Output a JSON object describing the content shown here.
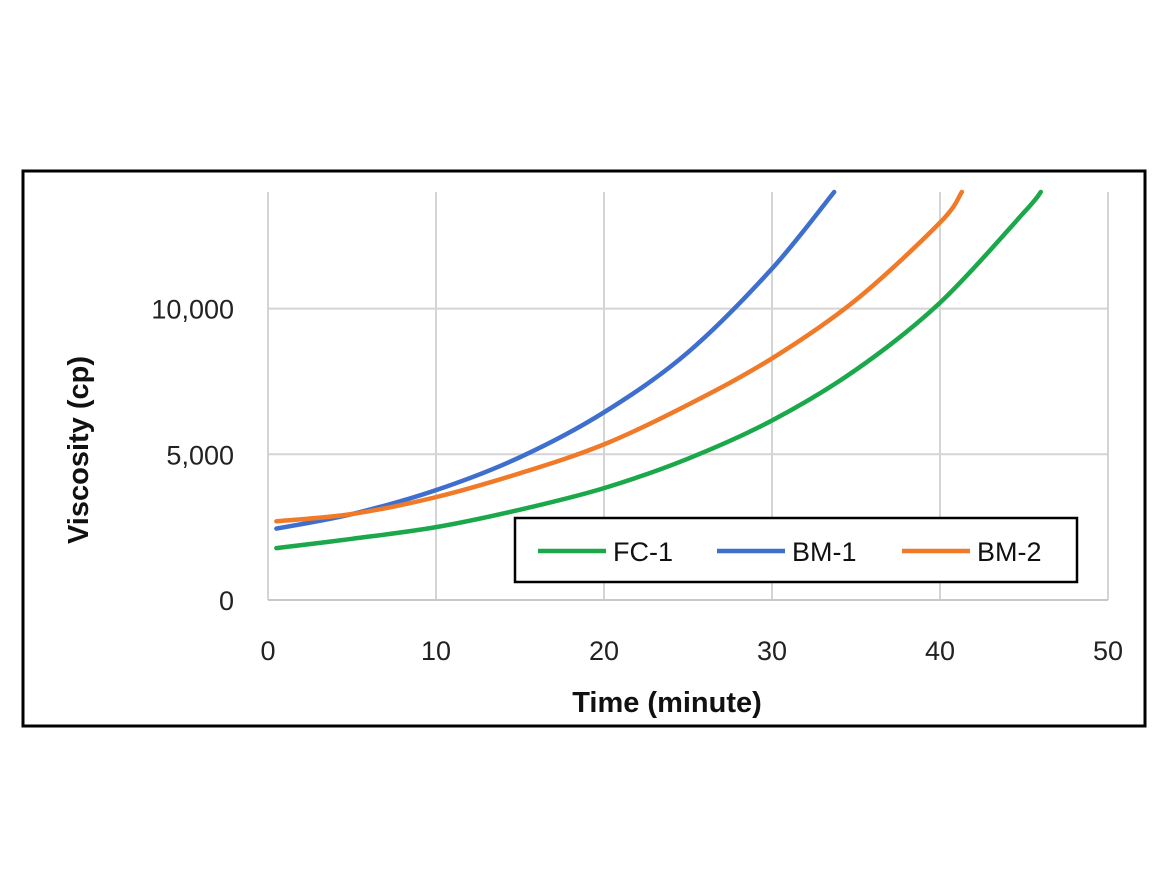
{
  "chart_data": {
    "type": "line",
    "title": "",
    "xlabel": "Time (minute)",
    "ylabel": "Viscosity (cp)",
    "xlim": [
      0,
      50
    ],
    "ylim": [
      0,
      14000
    ],
    "xticks": [
      0,
      10,
      20,
      30,
      40,
      50
    ],
    "xtick_labels": [
      "0",
      "10",
      "20",
      "30",
      "40",
      "50"
    ],
    "yticks": [
      0,
      5000,
      10000
    ],
    "ytick_labels": [
      "0",
      "5,000",
      "10,000"
    ],
    "grid": true,
    "legend_position": "bottom-right",
    "series": [
      {
        "name": "FC-1",
        "color": "#1aa84a",
        "x": [
          0.5,
          5,
          10,
          15,
          20,
          25,
          30,
          35,
          40,
          45,
          46
        ],
        "y": [
          1780,
          2100,
          2500,
          3100,
          3840,
          4850,
          6160,
          7900,
          10200,
          13300,
          14000
        ]
      },
      {
        "name": "BM-1",
        "color": "#3f6fce",
        "x": [
          0.5,
          5,
          10,
          15,
          20,
          25,
          30,
          33.7
        ],
        "y": [
          2450,
          2950,
          3770,
          4900,
          6440,
          8500,
          11370,
          14000
        ]
      },
      {
        "name": "BM-2",
        "color": "#f07a28",
        "x": [
          0.5,
          5,
          10,
          15,
          20,
          25,
          30,
          35,
          40,
          41.3
        ],
        "y": [
          2700,
          2950,
          3530,
          4350,
          5340,
          6700,
          8290,
          10300,
          12950,
          14000
        ]
      }
    ]
  }
}
